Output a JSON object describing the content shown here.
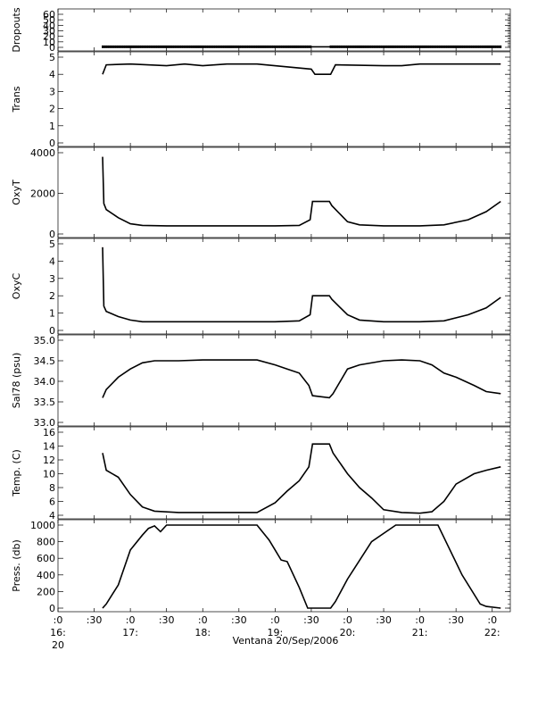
{
  "chart_data": {
    "type": "line",
    "xlabel": "Ventana 20/Sep/2006",
    "x_range": [
      "16:00",
      "22:15"
    ],
    "x_ticks": [
      {
        "top": ":0",
        "bottom": "16:",
        "sub": "20"
      },
      {
        "top": ":30",
        "bottom": ""
      },
      {
        "top": ":0",
        "bottom": "17:"
      },
      {
        "top": ":30",
        "bottom": ""
      },
      {
        "top": ":0",
        "bottom": "18:"
      },
      {
        "top": ":30",
        "bottom": ""
      },
      {
        "top": ":0",
        "bottom": "19:"
      },
      {
        "top": ":30",
        "bottom": ""
      },
      {
        "top": ":0",
        "bottom": "20:"
      },
      {
        "top": ":30",
        "bottom": ""
      },
      {
        "top": ":0",
        "bottom": "21:"
      },
      {
        "top": ":30",
        "bottom": ""
      },
      {
        "top": ":0",
        "bottom": "22:"
      }
    ],
    "series_colors": {
      "processed": "#000000",
      "raw": "#ff0000"
    },
    "panels": [
      {
        "ylabel": "Dropouts",
        "ylim": [
          0,
          60
        ],
        "yticks": [
          "0",
          "10",
          "20",
          "30",
          "40",
          "50",
          "60"
        ],
        "x": [
          "16:37",
          "19:30",
          "19:46",
          "22:07"
        ],
        "y": [
          1,
          1,
          1,
          1
        ],
        "gap": [
          "19:30",
          "19:46"
        ]
      },
      {
        "ylabel": "Trans",
        "ylim": [
          0,
          5
        ],
        "yticks": [
          "0",
          "1",
          "2",
          "3",
          "4",
          "5"
        ],
        "x": [
          "16:37",
          "16:40",
          "17:00",
          "17:30",
          "17:45",
          "18:00",
          "18:20",
          "18:45",
          "19:30",
          "19:33",
          "19:46",
          "19:50",
          "20:30",
          "20:45",
          "21:00",
          "21:30",
          "22:07"
        ],
        "y": [
          4.0,
          4.55,
          4.6,
          4.5,
          4.6,
          4.5,
          4.6,
          4.6,
          4.3,
          4.0,
          4.0,
          4.55,
          4.5,
          4.5,
          4.6,
          4.6,
          4.6
        ]
      },
      {
        "ylabel": "OxyT",
        "ylim": [
          0,
          4000
        ],
        "yticks": [
          "0",
          "2000",
          "4000"
        ],
        "x": [
          "16:37",
          "16:38",
          "16:40",
          "16:50",
          "17:00",
          "17:10",
          "17:30",
          "18:00",
          "18:30",
          "19:00",
          "19:20",
          "19:29",
          "19:31",
          "19:45",
          "19:47",
          "20:00",
          "20:10",
          "20:30",
          "21:00",
          "21:20",
          "21:40",
          "21:55",
          "22:07"
        ],
        "y": [
          3800,
          1500,
          1200,
          800,
          500,
          420,
          400,
          400,
          400,
          400,
          420,
          700,
          1600,
          1600,
          1400,
          600,
          450,
          400,
          400,
          450,
          700,
          1100,
          1600
        ]
      },
      {
        "ylabel": "OxyC",
        "ylim": [
          0,
          5
        ],
        "yticks": [
          "0",
          "1",
          "2",
          "3",
          "4",
          "5"
        ],
        "x": [
          "16:37",
          "16:38",
          "16:40",
          "16:50",
          "17:00",
          "17:10",
          "17:30",
          "18:00",
          "18:30",
          "19:00",
          "19:20",
          "19:29",
          "19:31",
          "19:45",
          "19:47",
          "20:00",
          "20:10",
          "20:30",
          "21:00",
          "21:20",
          "21:40",
          "21:55",
          "22:07"
        ],
        "y": [
          4.8,
          1.4,
          1.1,
          0.8,
          0.6,
          0.5,
          0.5,
          0.5,
          0.5,
          0.5,
          0.55,
          0.9,
          2.0,
          2.0,
          1.8,
          0.9,
          0.6,
          0.5,
          0.5,
          0.55,
          0.9,
          1.3,
          1.9
        ]
      },
      {
        "ylabel": "Sal78 (psu)",
        "ylim": [
          33.0,
          35.0
        ],
        "yticks": [
          "33.0",
          "33.5",
          "34.0",
          "34.5",
          "35.0"
        ],
        "x": [
          "16:37",
          "16:40",
          "16:50",
          "17:00",
          "17:10",
          "17:20",
          "17:40",
          "18:00",
          "18:30",
          "18:45",
          "19:00",
          "19:10",
          "19:20",
          "19:28",
          "19:31",
          "19:45",
          "19:48",
          "20:00",
          "20:10",
          "20:30",
          "20:45",
          "21:00",
          "21:10",
          "21:20",
          "21:30",
          "21:45",
          "21:55",
          "22:07"
        ],
        "y": [
          33.6,
          33.8,
          34.1,
          34.3,
          34.45,
          34.5,
          34.5,
          34.52,
          34.52,
          34.52,
          34.4,
          34.3,
          34.2,
          33.9,
          33.65,
          33.6,
          33.7,
          34.3,
          34.4,
          34.5,
          34.52,
          34.5,
          34.4,
          34.2,
          34.1,
          33.9,
          33.75,
          33.7
        ]
      },
      {
        "ylabel": "Temp. (C)",
        "ylim": [
          4,
          16
        ],
        "yticks": [
          "4",
          "6",
          "8",
          "10",
          "12",
          "14",
          "16"
        ],
        "x": [
          "16:37",
          "16:40",
          "16:50",
          "17:00",
          "17:10",
          "17:20",
          "17:40",
          "18:00",
          "18:30",
          "18:45",
          "19:00",
          "19:10",
          "19:20",
          "19:28",
          "19:31",
          "19:45",
          "19:48",
          "20:00",
          "20:10",
          "20:20",
          "20:30",
          "20:45",
          "21:00",
          "21:10",
          "21:20",
          "21:30",
          "21:45",
          "21:55",
          "22:07"
        ],
        "y": [
          13.0,
          10.5,
          9.5,
          7.0,
          5.2,
          4.6,
          4.4,
          4.4,
          4.4,
          4.4,
          5.8,
          7.5,
          9.0,
          11.0,
          14.3,
          14.3,
          13.0,
          10.0,
          8.0,
          6.5,
          4.8,
          4.4,
          4.3,
          4.5,
          6.0,
          8.5,
          10.0,
          10.5,
          11.0
        ]
      },
      {
        "ylabel": "Press. (db)",
        "ylim": [
          0,
          1000
        ],
        "yticks": [
          "0",
          "200",
          "400",
          "600",
          "800",
          "1000"
        ],
        "x": [
          "16:37",
          "16:40",
          "16:50",
          "17:00",
          "17:10",
          "17:15",
          "17:20",
          "17:25",
          "17:30",
          "18:00",
          "18:30",
          "18:45",
          "18:55",
          "19:00",
          "19:05",
          "19:10",
          "19:20",
          "19:27",
          "19:46",
          "19:50",
          "20:00",
          "20:20",
          "20:40",
          "20:55",
          "21:15",
          "21:35",
          "21:50",
          "21:55",
          "22:07"
        ],
        "y": [
          0,
          50,
          280,
          700,
          880,
          960,
          990,
          920,
          1000,
          1000,
          1000,
          1000,
          820,
          700,
          580,
          560,
          250,
          0,
          0,
          80,
          350,
          800,
          1000,
          1000,
          1000,
          400,
          50,
          20,
          0
        ]
      }
    ]
  }
}
